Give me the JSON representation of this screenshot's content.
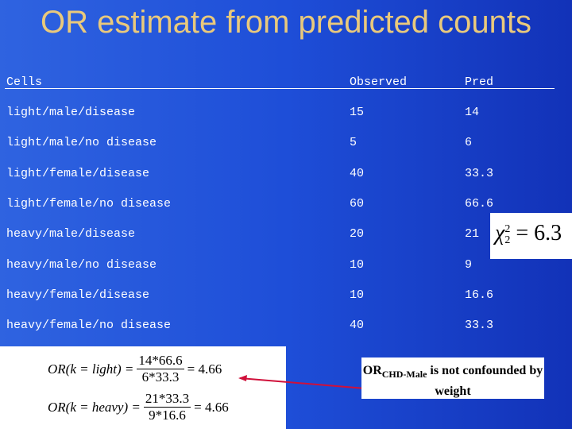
{
  "title": "OR estimate from predicted counts",
  "table": {
    "header": [
      "Cells",
      "Observed",
      "Pred"
    ],
    "rows": [
      [
        "light/male/disease",
        15,
        14
      ],
      [
        "light/male/no disease",
        5,
        6
      ],
      [
        "light/female/disease",
        40,
        33.3
      ],
      [
        "light/female/no disease",
        60,
        66.6
      ],
      [
        "heavy/male/disease",
        20,
        21
      ],
      [
        "heavy/male/no disease",
        10,
        9
      ],
      [
        "heavy/female/disease",
        10,
        16.6
      ],
      [
        "heavy/female/no disease",
        40,
        33.3
      ]
    ]
  },
  "chi_square": {
    "symbol": "χ",
    "sup": "2",
    "sub": "2",
    "rhs": "= 6.3"
  },
  "formulas": [
    {
      "lhs": "OR(k = light) =",
      "numerator": "14*66.6",
      "denominator": "6*33.3",
      "result": "= 4.66"
    },
    {
      "lhs": "OR(k = heavy) =",
      "numerator": "21*33.3",
      "denominator": "9*16.6",
      "result": "= 4.66"
    }
  ],
  "callout": {
    "main": "OR",
    "sub": "CHD-Male",
    "rest": " is not confounded by weight"
  }
}
